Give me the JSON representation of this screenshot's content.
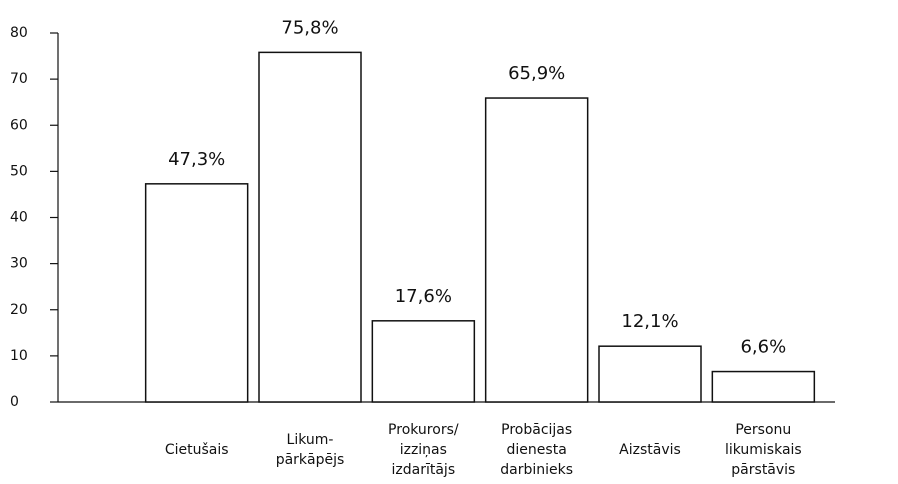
{
  "chart_data": {
    "type": "bar",
    "categories": [
      "Cietušais",
      "Likum-\npārkāpējs",
      "Prokurors/\nizziņas\nizdarītājs",
      "Probācijas\ndienesta\ndarbinieks",
      "Aizstāvis",
      "Personu\nlikumiskais\npārstāvis"
    ],
    "values": [
      47.3,
      75.8,
      17.6,
      65.9,
      12.1,
      6.6
    ],
    "value_labels": [
      "47,3%",
      "75,8%",
      "17,6%",
      "65,9%",
      "12,1%",
      "6,6%"
    ],
    "color": "#ffffff",
    "ylim": [
      0,
      80
    ],
    "yticks": [
      0,
      10,
      20,
      30,
      40,
      50,
      60,
      70,
      80
    ],
    "grid": false
  }
}
